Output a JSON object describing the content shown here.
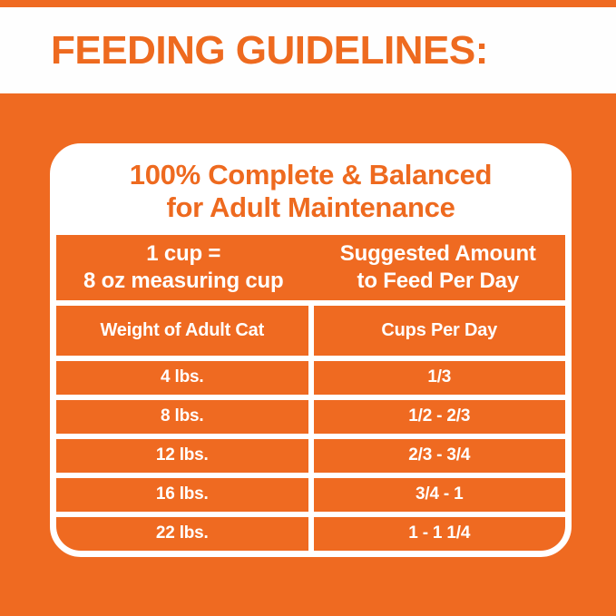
{
  "header": {
    "title": "FEEDING GUIDELINES:"
  },
  "card": {
    "title_line1": "100% Complete & Balanced",
    "title_line2": "for Adult Maintenance",
    "intro": {
      "left_line1": "1 cup =",
      "left_line2": "8 oz measuring cup",
      "right_line1": "Suggested Amount",
      "right_line2": "to Feed Per Day"
    },
    "columns": [
      "Weight of Adult Cat",
      "Cups Per Day"
    ],
    "rows": [
      {
        "weight": "4 lbs.",
        "cups": "1/3"
      },
      {
        "weight": "8 lbs.",
        "cups": "1/2 - 2/3"
      },
      {
        "weight": "12 lbs.",
        "cups": "2/3 - 3/4"
      },
      {
        "weight": "16 lbs.",
        "cups": "3/4 - 1"
      },
      {
        "weight": "22 lbs.",
        "cups": "1 - 1 1/4"
      }
    ]
  },
  "colors": {
    "accent_orange": "#ef6a21",
    "text_on_white": "#ee6a1f",
    "text_on_orange": "#ffffff"
  },
  "chart_data": {
    "type": "table",
    "title": "100% Complete & Balanced for Adult Maintenance",
    "note": "1 cup = 8 oz measuring cup; Suggested Amount to Feed Per Day",
    "columns": [
      "Weight of Adult Cat",
      "Cups Per Day"
    ],
    "rows": [
      [
        "4 lbs.",
        "1/3"
      ],
      [
        "8 lbs.",
        "1/2 - 2/3"
      ],
      [
        "12 lbs.",
        "2/3 - 3/4"
      ],
      [
        "16 lbs.",
        "3/4 - 1"
      ],
      [
        "22 lbs.",
        "1 - 1 1/4"
      ]
    ]
  }
}
